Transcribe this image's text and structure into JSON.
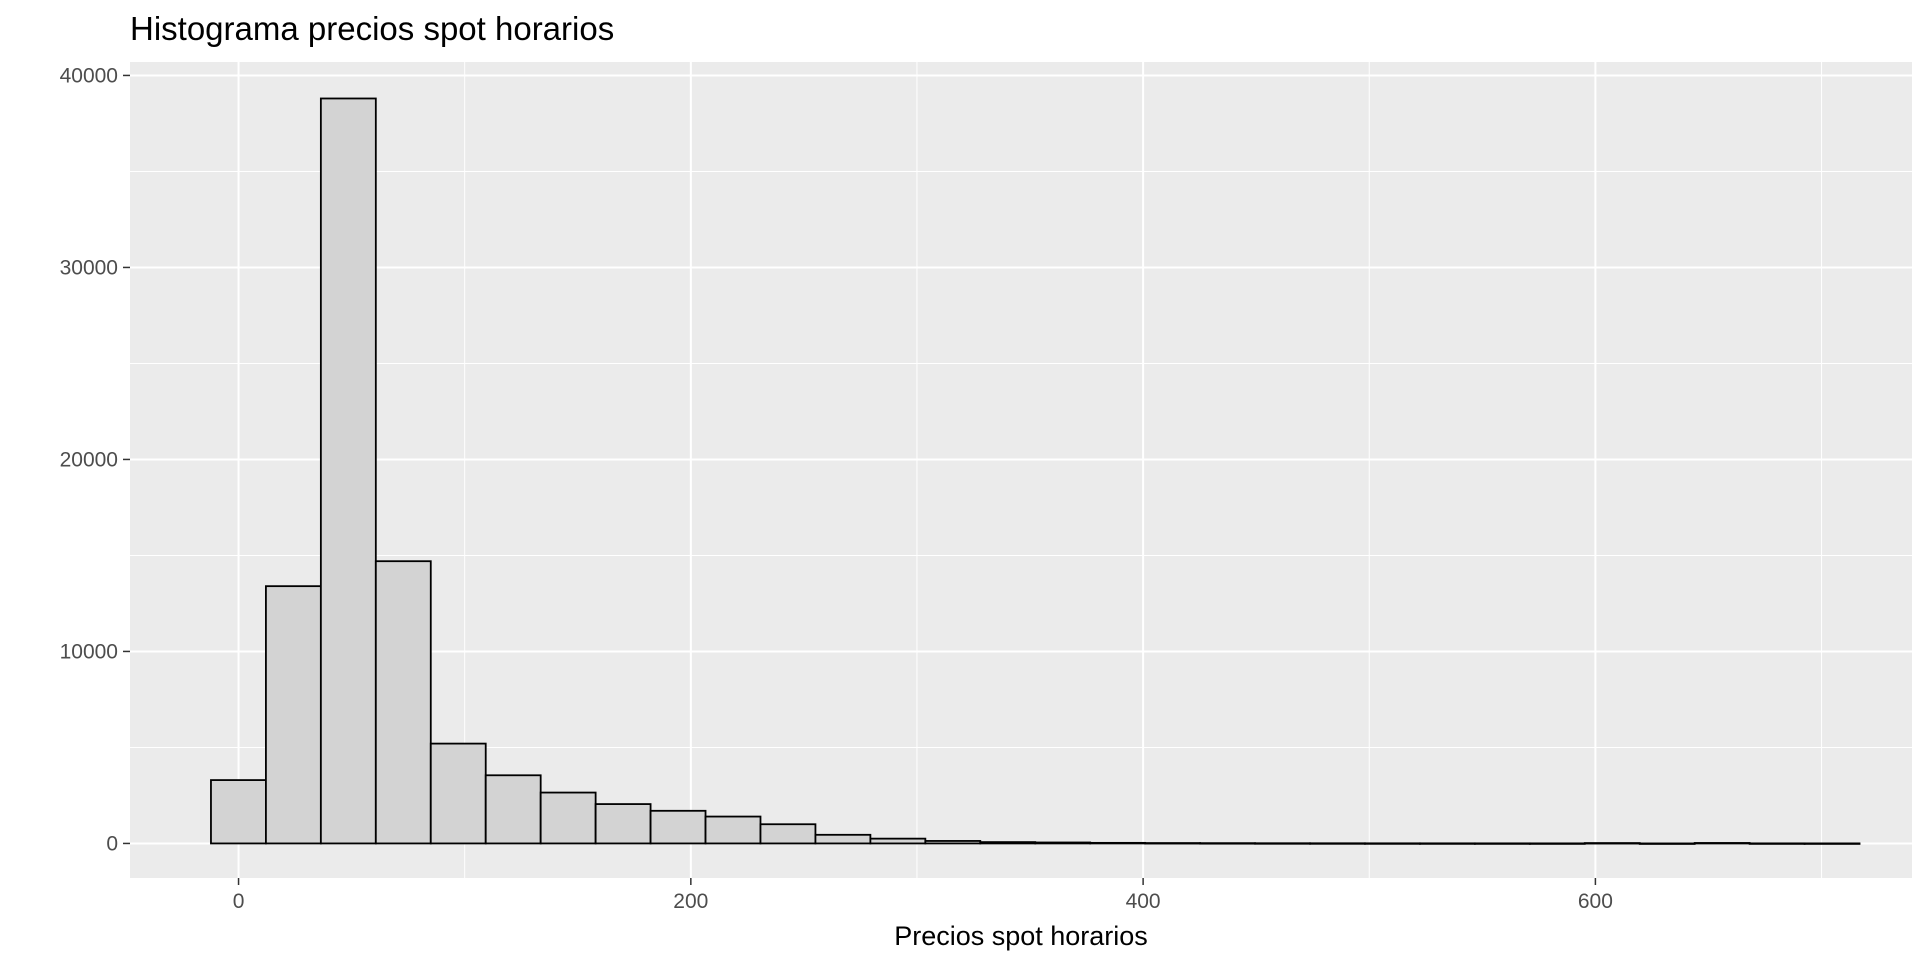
{
  "chart_data": {
    "type": "bar",
    "histogram": true,
    "title": "Histograma precios spot horarios",
    "xlabel": "Precios spot horarios",
    "ylabel": "",
    "xlim": [
      -48,
      740
    ],
    "ylim": [
      -1800,
      40700
    ],
    "x_ticks": [
      0,
      200,
      400,
      600
    ],
    "x_tick_labels": [
      "0",
      "200",
      "400",
      "600"
    ],
    "y_ticks": [
      0,
      10000,
      20000,
      30000,
      40000
    ],
    "y_tick_labels": [
      "0",
      "10000",
      "20000",
      "30000",
      "40000"
    ],
    "bin_width": 24.3,
    "bin_start": -12.2,
    "values": [
      3300,
      13400,
      38800,
      14700,
      5200,
      3550,
      2650,
      2050,
      1700,
      1400,
      1000,
      450,
      250,
      130,
      70,
      50,
      30,
      20,
      15,
      10,
      8,
      6,
      5,
      4,
      3,
      20,
      0,
      25,
      3,
      2
    ],
    "grid": true,
    "legend": "none",
    "colors": {
      "panel_background": "#ebebeb",
      "grid": "#ffffff",
      "bar_fill": "#d3d3d3",
      "bar_stroke": "#000000"
    }
  }
}
